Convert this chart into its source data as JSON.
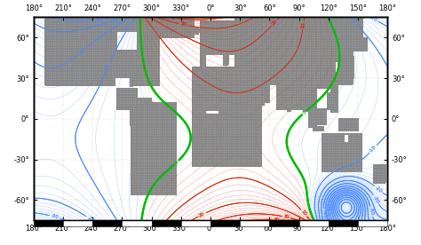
{
  "lon_min": -180,
  "lon_max": 180,
  "lat_min": -75,
  "lat_max": 75,
  "xticks": [
    -180,
    -150,
    -120,
    -90,
    -60,
    -30,
    0,
    30,
    60,
    90,
    120,
    150,
    180
  ],
  "xtick_labels": [
    "180°",
    "210°",
    "240°",
    "270°",
    "300°",
    "330°",
    "0°",
    "30°",
    "60°",
    "90°",
    "120°",
    "150°",
    "180°"
  ],
  "yticks": [
    -60,
    -30,
    0,
    30,
    60
  ],
  "ytick_labels": [
    "-60°",
    "-30°",
    "0°",
    "30°",
    "60°"
  ],
  "neg_color": "#4488ff",
  "zero_color": "#00bb00",
  "pos_color": "#dd2200",
  "land_color": "#888888",
  "bg_color": "#ffffff",
  "grid_color": "#aaaaaa",
  "tick_fontsize": 6,
  "figsize": [
    4.74,
    2.76
  ],
  "dpi": 100
}
